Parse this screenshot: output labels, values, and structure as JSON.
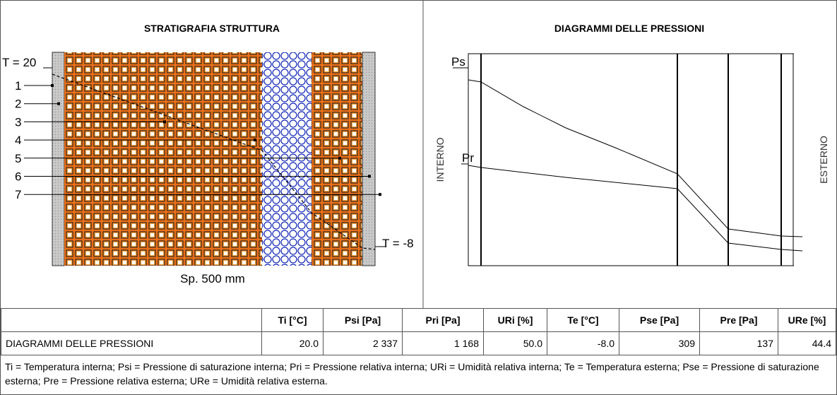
{
  "stratigraphy": {
    "title": "STRATIGRAFIA STRUTTURA",
    "t_internal": "T = 20",
    "t_external": "T = -8",
    "layers": [
      "1",
      "2",
      "3",
      "4",
      "5",
      "6",
      "7"
    ],
    "thickness": "Sp. 500 mm"
  },
  "diagram": {
    "title": "DIAGRAMMI DELLE PRESSIONI",
    "ps_label": "Ps",
    "pr_label": "Pr",
    "internal": "INTERNO",
    "external": "ESTERNO"
  },
  "table": {
    "header": [
      "Ti [°C]",
      "Psi [Pa]",
      "Pri [Pa]",
      "URi [%]",
      "Te [°C]",
      "Pse [Pa]",
      "Pre [Pa]",
      "URe [%]"
    ],
    "rows": [
      [
        "DIAGRAMMI DELLE PRESSIONI",
        "20.0",
        "2 337",
        "1 168",
        "50.0",
        "-8.0",
        "309",
        "137",
        "44.4"
      ]
    ]
  },
  "note": "Ti = Temperatura interna; Psi = Pressione di saturazione interna; Pri = Pressione relativa interna; URi = Umidità relativa interna; Te = Temperatura esterna; Pse = Pressione di saturazione esterna; Pre = Pressione relativa esterna; URe = Umidità relativa esterna."
}
